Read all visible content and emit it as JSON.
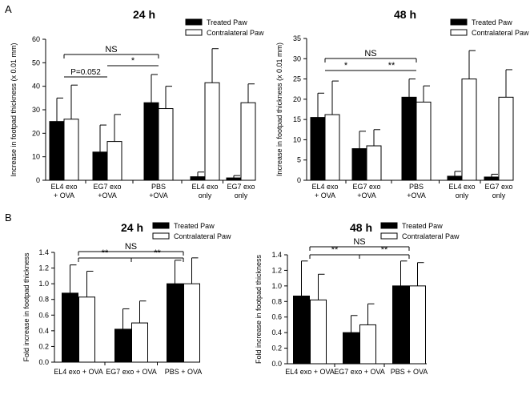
{
  "figure": {
    "panel_labels": [
      "A",
      "B"
    ],
    "legend": {
      "treated": "Treated Paw",
      "contralateral": "Contralateral Paw"
    },
    "colors": {
      "treated": "#000000",
      "contralateral": "#ffffff",
      "axis": "#000000"
    }
  },
  "chart_data": [
    {
      "id": "A-24h",
      "type": "bar",
      "title": "24 h",
      "ylabel": "Increase in footpad thickness  (x 0.01 mm)",
      "xlabel": "",
      "ylim": [
        0,
        60
      ],
      "yticks": [
        0,
        10,
        20,
        30,
        40,
        50,
        60
      ],
      "tick_decimals": 0,
      "categories": [
        [
          "EL4 exo",
          "+ OVA"
        ],
        [
          "EG7 exo",
          "+OVA"
        ],
        [
          "PBS",
          "+OVA"
        ],
        [
          "EL4 exo",
          "only"
        ],
        [
          "EG7 exo",
          "only"
        ]
      ],
      "series": [
        {
          "name": "Treated Paw",
          "values": [
            25,
            12,
            33,
            1.5,
            1
          ],
          "errors": [
            10,
            11.5,
            12,
            2,
            1
          ]
        },
        {
          "name": "Contralateral Paw",
          "values": [
            26,
            16.5,
            30.5,
            41.5,
            33
          ],
          "errors": [
            14.5,
            11.5,
            9.5,
            14.5,
            8
          ]
        }
      ],
      "annotations": [
        {
          "text": "NS",
          "from": 0,
          "to": 2
        },
        {
          "text": "P=0.052",
          "from": 0,
          "to": 1
        },
        {
          "text": "*",
          "from": 1,
          "to": 2
        }
      ]
    },
    {
      "id": "A-48h",
      "type": "bar",
      "title": "48 h",
      "ylabel": "Increase in footpad thickness (x 0.01 mm)",
      "xlabel": "",
      "ylim": [
        0,
        35
      ],
      "yticks": [
        0,
        5,
        10,
        15,
        20,
        25,
        30,
        35
      ],
      "tick_decimals": 0,
      "categories": [
        [
          "EL4 exo",
          "+ OVA"
        ],
        [
          "EG7 exo",
          "+OVA"
        ],
        [
          "PBS",
          "+OVA"
        ],
        [
          "EL4 exo",
          "only"
        ],
        [
          "EG7 exo",
          "only"
        ]
      ],
      "series": [
        {
          "name": "Treated Paw",
          "values": [
            15.5,
            7.8,
            20.5,
            1,
            0.8
          ],
          "errors": [
            6,
            4.3,
            4.5,
            1.2,
            0.7
          ]
        },
        {
          "name": "Contralateral Paw",
          "values": [
            16.2,
            8.5,
            19.3,
            25,
            20.5
          ],
          "errors": [
            8.3,
            4,
            4,
            7,
            6.8
          ]
        }
      ],
      "annotations": [
        {
          "text": "NS",
          "from": 0,
          "to": 2
        },
        {
          "text": "*",
          "from": 0,
          "to": 1
        },
        {
          "text": "**",
          "from": 1,
          "to": 2
        }
      ]
    },
    {
      "id": "B-24h",
      "type": "bar",
      "title": "24 h",
      "ylabel": "Fold increase in footpad thickness",
      "xlabel": "",
      "ylim": [
        0,
        1.4
      ],
      "yticks": [
        0,
        0.2,
        0.4,
        0.6,
        0.8,
        1.0,
        1.2,
        1.4
      ],
      "tick_decimals": 1,
      "categories": [
        [
          "EL4 exo + OVA"
        ],
        [
          "EG7 exo + OVA"
        ],
        [
          "PBS + OVA"
        ]
      ],
      "series": [
        {
          "name": "Treated Paw",
          "values": [
            0.88,
            0.42,
            1.0
          ],
          "errors": [
            0.36,
            0.26,
            0.3
          ]
        },
        {
          "name": "Contralateral Paw",
          "values": [
            0.83,
            0.5,
            1.0
          ],
          "errors": [
            0.33,
            0.28,
            0.33
          ]
        }
      ],
      "annotations": [
        {
          "text": "NS",
          "from": 0,
          "to": 2
        },
        {
          "text": "**",
          "from": 0,
          "to": 1
        },
        {
          "text": "**",
          "from": 1,
          "to": 2
        }
      ]
    },
    {
      "id": "B-48h",
      "type": "bar",
      "title": "48 h",
      "ylabel": "Fold increase in footpad thickness",
      "xlabel": "",
      "ylim": [
        0,
        1.4
      ],
      "yticks": [
        0,
        0.2,
        0.4,
        0.6,
        0.8,
        1.0,
        1.2,
        1.4
      ],
      "tick_decimals": 1,
      "categories": [
        [
          "EL4 exo + OVA"
        ],
        [
          "EG7 exo + OVA"
        ],
        [
          "PBS + OVA"
        ]
      ],
      "series": [
        {
          "name": "Treated Paw",
          "values": [
            0.87,
            0.4,
            1.0
          ],
          "errors": [
            0.45,
            0.22,
            0.32
          ]
        },
        {
          "name": "Contralateral Paw",
          "values": [
            0.82,
            0.5,
            1.0
          ],
          "errors": [
            0.33,
            0.27,
            0.3
          ]
        }
      ],
      "annotations": [
        {
          "text": "NS",
          "from": 0,
          "to": 2
        },
        {
          "text": "**",
          "from": 0,
          "to": 1
        },
        {
          "text": "**",
          "from": 1,
          "to": 2
        }
      ]
    }
  ]
}
